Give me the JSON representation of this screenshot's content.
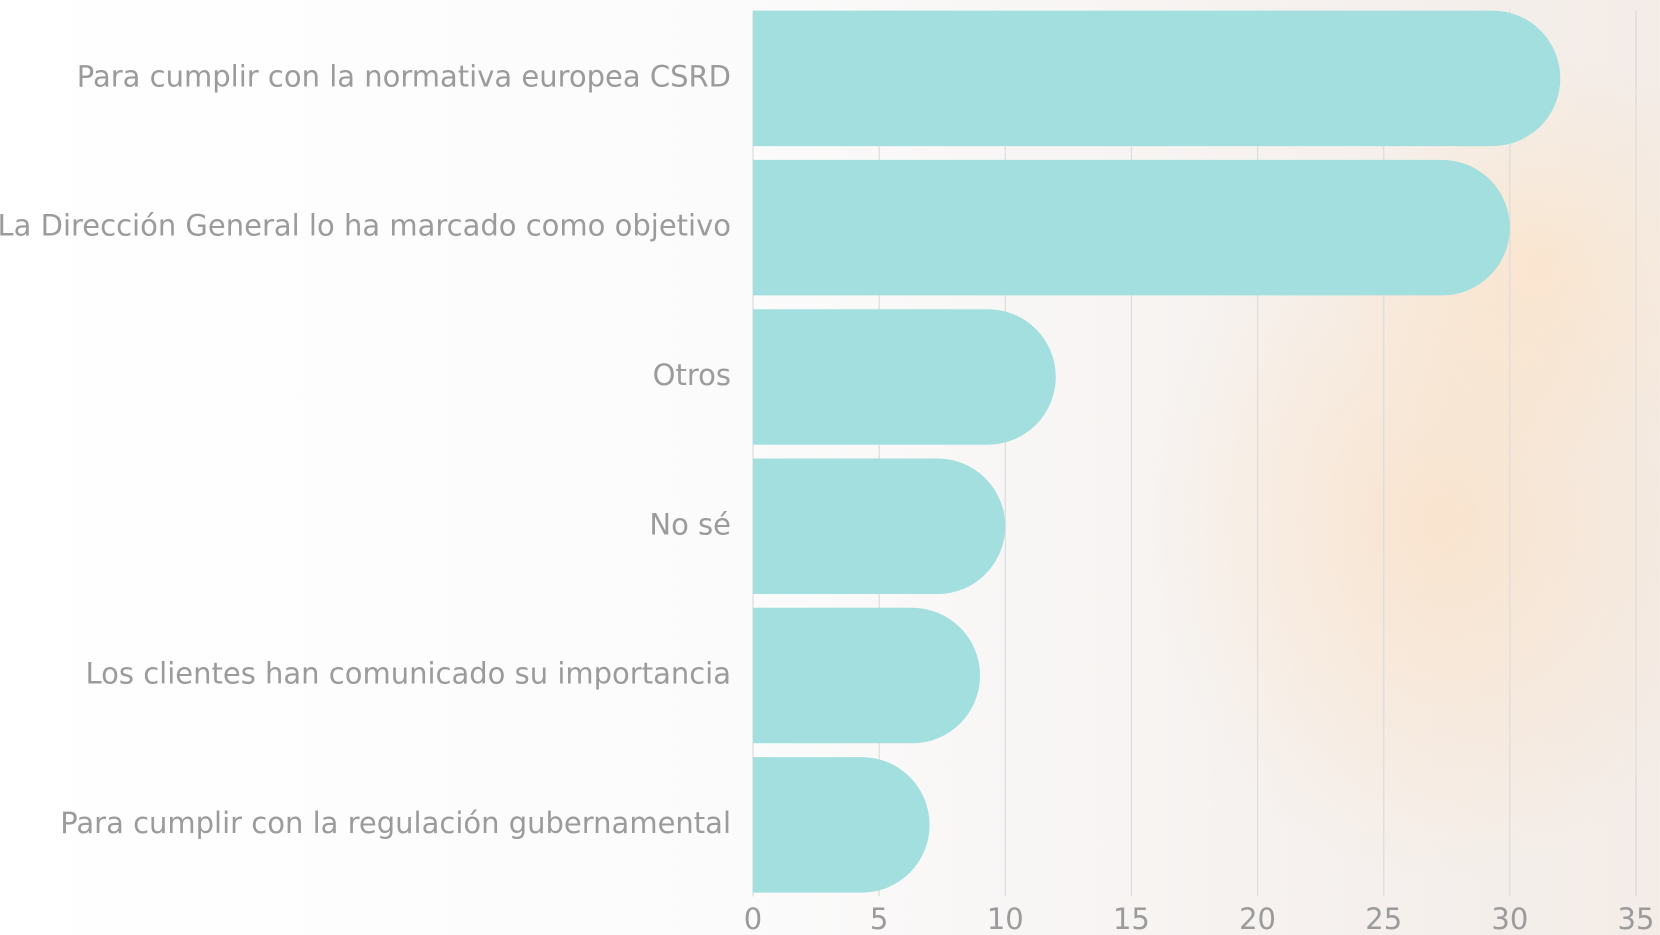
{
  "chart_data": {
    "type": "bar",
    "orientation": "horizontal",
    "categories": [
      "Para cumplir con la normativa europea CSRD",
      "La Dirección General lo ha marcado como objetivo",
      "Otros",
      "No sé",
      "Los clientes han comunicado su importancia",
      "Para cumplir con la regulación gubernamental"
    ],
    "values": [
      32,
      30,
      12,
      10,
      9,
      7
    ],
    "color": "#a3dfdf",
    "xlim": [
      0,
      35
    ],
    "xticks": [
      0,
      5,
      10,
      15,
      20,
      25,
      30,
      35
    ],
    "grid": true
  }
}
